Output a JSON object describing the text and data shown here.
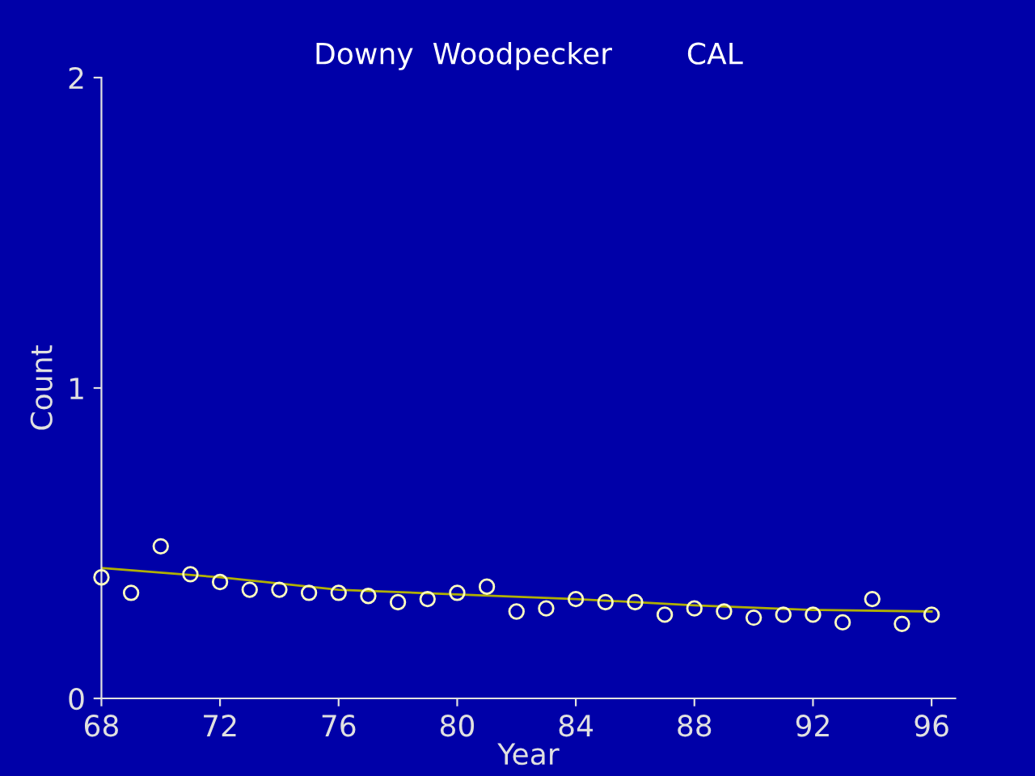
{
  "chart_data": {
    "type": "scatter",
    "title": "Downy  Woodpecker        CAL",
    "xlabel": "Year",
    "ylabel": "Count",
    "xlim": [
      68,
      96.8
    ],
    "ylim": [
      0,
      2
    ],
    "xticks": [
      68,
      72,
      76,
      80,
      84,
      88,
      92,
      96
    ],
    "yticks": [
      0,
      1,
      2
    ],
    "grid": false,
    "series": [
      {
        "marker": "circle",
        "color": "#ffffc0",
        "x": [
          68,
          69,
          70,
          71,
          72,
          73,
          74,
          75,
          76,
          77,
          78,
          79,
          80,
          81,
          82,
          83,
          84,
          85,
          86,
          87,
          88,
          89,
          90,
          91,
          92,
          93,
          94,
          95,
          96
        ],
        "values": [
          0.39,
          0.34,
          0.49,
          0.4,
          0.375,
          0.35,
          0.35,
          0.34,
          0.34,
          0.33,
          0.31,
          0.32,
          0.34,
          0.36,
          0.28,
          0.29,
          0.32,
          0.31,
          0.31,
          0.27,
          0.29,
          0.28,
          0.26,
          0.27,
          0.27,
          0.245,
          0.32,
          0.24,
          0.27
        ]
      },
      {
        "type": "line",
        "color": "#b0b000",
        "x": [
          68,
          72,
          76,
          80,
          84,
          88,
          92,
          96
        ],
        "values": [
          0.42,
          0.39,
          0.35,
          0.335,
          0.32,
          0.3,
          0.285,
          0.28
        ]
      }
    ]
  }
}
